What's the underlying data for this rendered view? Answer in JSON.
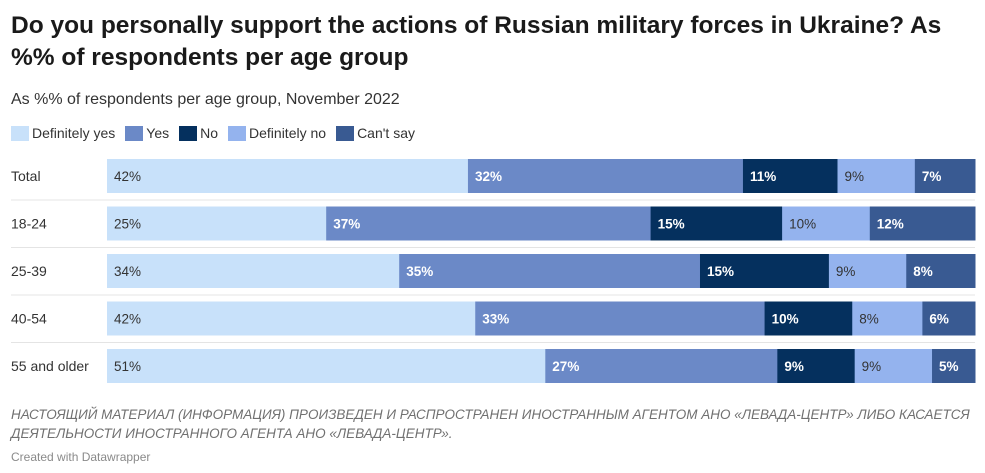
{
  "title": "Do you personally support the actions of Russian military forces in Ukraine? As %% of respondents per age group",
  "subtitle": "As %% of respondents per age group, November 2022",
  "legend": [
    {
      "label": "Definitely yes",
      "color": "#c8e1fa"
    },
    {
      "label": "Yes",
      "color": "#6b89c7"
    },
    {
      "label": "No",
      "color": "#05305e"
    },
    {
      "label": "Definitely no",
      "color": "#94b3ee"
    },
    {
      "label": "Can't say",
      "color": "#395a92"
    }
  ],
  "chart_data": {
    "type": "bar",
    "orientation": "horizontal",
    "stacked": true,
    "title": "Do you personally support the actions of Russian military forces in Ukraine? As %% of respondents per age group",
    "subtitle": "As %% of respondents per age group, November 2022",
    "unit": "%",
    "categories": [
      "Total",
      "18-24",
      "25-39",
      "40-54",
      "55 and older"
    ],
    "series": [
      {
        "name": "Definitely yes",
        "color": "#c8e1fa",
        "label_color": "#333333",
        "label_bold": false,
        "values": [
          42,
          25,
          34,
          42,
          51
        ]
      },
      {
        "name": "Yes",
        "color": "#6b89c7",
        "label_color": "#ffffff",
        "label_bold": true,
        "values": [
          32,
          37,
          35,
          33,
          27
        ]
      },
      {
        "name": "No",
        "color": "#05305e",
        "label_color": "#ffffff",
        "label_bold": true,
        "values": [
          11,
          15,
          15,
          10,
          9
        ]
      },
      {
        "name": "Definitely no",
        "color": "#94b3ee",
        "label_color": "#333333",
        "label_bold": false,
        "values": [
          9,
          10,
          9,
          8,
          9
        ]
      },
      {
        "name": "Can't say",
        "color": "#395a92",
        "label_color": "#ffffff",
        "label_bold": true,
        "values": [
          7,
          12,
          8,
          6,
          5
        ]
      }
    ],
    "xlim": [
      0,
      100
    ],
    "grid": false,
    "legend_position": "top-left"
  },
  "footer": {
    "note": "НАСТОЯЩИЙ МАТЕРИАЛ (ИНФОРМАЦИЯ) ПРОИЗВЕДЕН И РАСПРОСТРАНЕН ИНОСТРАННЫМ АГЕНТОМ АНО «ЛЕВАДА-ЦЕНТР» ЛИБО КАСАЕТСЯ ДЕЯТЕЛЬНОСТИ ИНОСТРАННОГО АГЕНТА АНО «ЛЕВАДА-ЦЕНТР».",
    "credit": "Created with Datawrapper"
  }
}
